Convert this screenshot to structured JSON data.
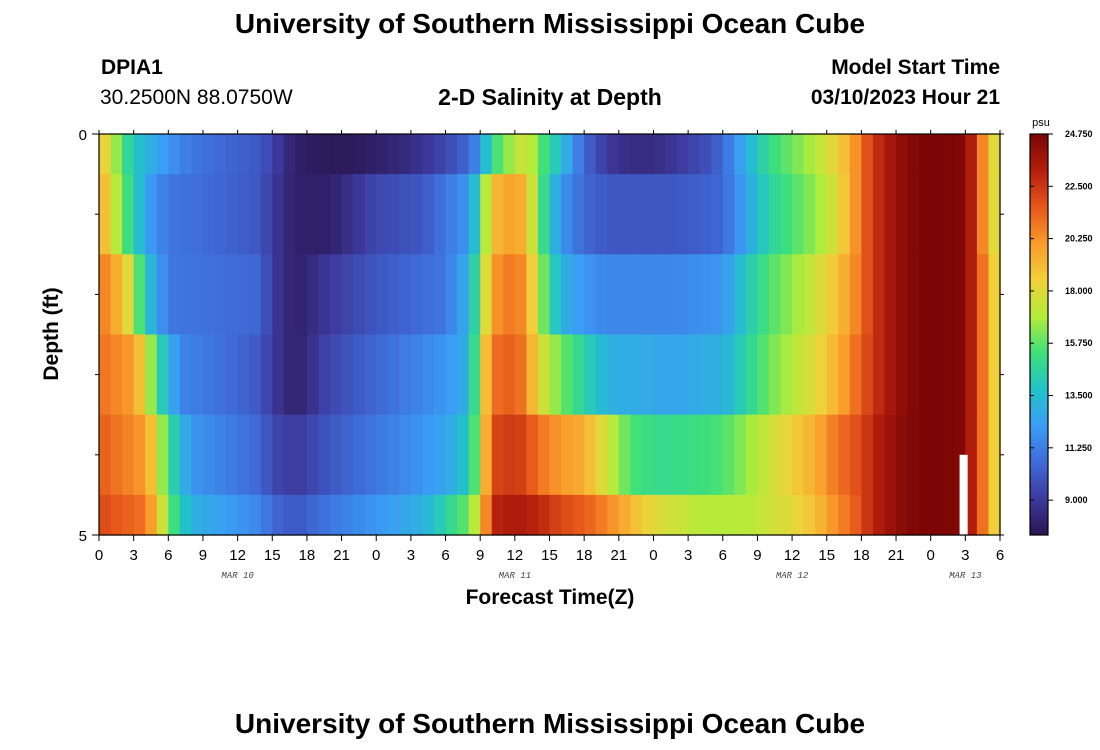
{
  "page": {
    "title": "University of Southern Mississippi Ocean Cube",
    "footer_title": "University of Southern Mississippi Ocean Cube",
    "station_id": "DPIA1",
    "coordinates": "30.2500N  88.0750W",
    "subtitle": "2-D Salinity at Depth",
    "model_start_label": "Model Start Time",
    "model_start_value": "03/10/2023 Hour 21"
  },
  "chart_data": {
    "type": "heatmap",
    "title": "2-D Salinity at Depth",
    "xlabel": "Forecast Time(Z)",
    "ylabel": "Depth (ft)",
    "units": "psu",
    "y_ticks": [
      "0",
      "5"
    ],
    "ylim": [
      0,
      5
    ],
    "x_hours_range": [
      0,
      78
    ],
    "x_ticks": [
      "0",
      "3",
      "6",
      "9",
      "12",
      "15",
      "18",
      "21",
      "0",
      "3",
      "6",
      "9",
      "12",
      "15",
      "18",
      "21",
      "0",
      "3",
      "6",
      "9",
      "12",
      "15",
      "18",
      "21",
      "0",
      "3",
      "6"
    ],
    "date_labels": [
      {
        "label": "MAR 10",
        "hour": 12
      },
      {
        "label": "MAR 11",
        "hour": 36
      },
      {
        "label": "MAR 12",
        "hour": 60
      },
      {
        "label": "MAR 13",
        "hour": 75
      }
    ],
    "colorbar": {
      "min": 7.5,
      "max": 24.75,
      "ticks": [
        "24.750",
        "22.500",
        "20.250",
        "18.000",
        "15.750",
        "13.500",
        "11.250",
        "9.000"
      ],
      "tick_values": [
        24.75,
        22.5,
        20.25,
        18.0,
        15.75,
        13.5,
        11.25,
        9.0
      ],
      "colors": [
        "#2a1450",
        "#3d3a9e",
        "#3f6bd9",
        "#3b9df5",
        "#22c3c9",
        "#3fe07a",
        "#b3ec3a",
        "#f2d03a",
        "#f99b2b",
        "#e7561b",
        "#b41e0c",
        "#7a0505"
      ]
    },
    "layers": [
      {
        "depth_range": [
          0,
          0.5
        ],
        "key_hours": [
          0,
          1,
          2,
          3,
          5,
          8,
          14,
          17,
          19,
          21,
          24,
          27,
          30,
          32,
          33,
          34,
          36,
          37,
          38,
          40,
          42,
          44,
          46,
          48,
          50,
          52,
          54,
          56,
          58,
          60,
          62,
          64,
          65,
          66,
          67,
          69,
          71,
          73,
          75,
          76,
          77,
          78
        ],
        "key_values": [
          19,
          17.5,
          15.5,
          14,
          12.5,
          11,
          10,
          8,
          7.8,
          7.7,
          8,
          8.5,
          9.5,
          10.5,
          12,
          15,
          17,
          17.8,
          16,
          13.5,
          10.5,
          9,
          8.5,
          8.5,
          9,
          9.5,
          10.5,
          13,
          15,
          16,
          17,
          18.5,
          19.5,
          21,
          22.5,
          24,
          24.7,
          24.7,
          24.5,
          22,
          19,
          17
        ]
      },
      {
        "depth_range": [
          0.5,
          1.5
        ],
        "key_hours": [
          0,
          1,
          2,
          3,
          4,
          6,
          14,
          15,
          17,
          20,
          24,
          28,
          30,
          32,
          33,
          34,
          36,
          37,
          38,
          40,
          42,
          44,
          50,
          54,
          56,
          58,
          60,
          62,
          64,
          65,
          66,
          67,
          69,
          71,
          73,
          75,
          76,
          77,
          78
        ],
        "key_values": [
          20,
          18,
          16,
          14.5,
          12.5,
          11,
          10,
          9,
          8,
          8,
          9.5,
          10,
          11,
          12,
          15,
          19,
          20,
          19,
          16,
          12,
          10.5,
          10,
          10,
          10.5,
          12.5,
          14.5,
          15.5,
          16.5,
          18,
          19.5,
          21,
          22.5,
          24,
          24.7,
          24.7,
          24.5,
          22,
          19,
          17
        ]
      },
      {
        "depth_range": [
          1.5,
          2.5
        ],
        "key_hours": [
          0,
          2,
          3,
          4,
          6,
          14,
          15,
          17,
          20,
          24,
          30,
          32,
          33,
          34,
          36,
          37,
          38,
          40,
          42,
          44,
          50,
          54,
          56,
          58,
          60,
          62,
          64,
          65,
          66,
          67,
          69,
          71,
          73,
          75,
          76,
          77,
          78
        ],
        "key_values": [
          21,
          19,
          17,
          14,
          11,
          10.5,
          9,
          8,
          9,
          10,
          11,
          13,
          16,
          20,
          21,
          20,
          17,
          13,
          12,
          11.5,
          11.5,
          12,
          14,
          15.5,
          16.5,
          17.5,
          19,
          20,
          21,
          22.5,
          24,
          24.7,
          24.7,
          24.5,
          22,
          20,
          17
        ]
      },
      {
        "depth_range": [
          2.5,
          3.5
        ],
        "key_hours": [
          0,
          3,
          4,
          5,
          7,
          12,
          14,
          15,
          17,
          20,
          24,
          30,
          32,
          33,
          34,
          36,
          37,
          38,
          40,
          42,
          44,
          50,
          54,
          56,
          58,
          60,
          62,
          64,
          65,
          66,
          67,
          69,
          71,
          73,
          75,
          76,
          77,
          78
        ],
        "key_values": [
          21,
          20,
          18,
          15,
          11.5,
          10.5,
          10,
          9,
          8,
          9.5,
          10.5,
          12,
          13,
          17,
          21,
          21.5,
          20.5,
          18,
          16,
          14.5,
          13,
          12.5,
          13,
          14.5,
          16,
          17,
          18,
          19.5,
          20.5,
          21.5,
          22.5,
          24,
          24.7,
          24.7,
          24.5,
          22,
          20,
          17
        ]
      },
      {
        "depth_range": [
          3.5,
          4.5
        ],
        "key_hours": [
          0,
          4,
          5,
          6,
          8,
          14,
          15,
          17,
          20,
          24,
          30,
          32,
          33,
          34,
          36,
          37,
          38,
          40,
          42,
          44,
          46,
          48,
          50,
          54,
          56,
          58,
          60,
          62,
          64,
          65,
          66,
          67,
          69,
          71,
          73,
          75,
          76,
          77,
          78
        ],
        "key_values": [
          21.5,
          20,
          18,
          15,
          12,
          10.5,
          9.5,
          9,
          10,
          11,
          12.5,
          14,
          17,
          22,
          22.5,
          22,
          21,
          20,
          19.5,
          17.5,
          15.5,
          15,
          15,
          15.5,
          16.5,
          17.5,
          18.5,
          19.5,
          21,
          21.5,
          22,
          23,
          24.2,
          24.7,
          24.7,
          24.5,
          22,
          20,
          17
        ]
      },
      {
        "depth_range": [
          4.5,
          5.0
        ],
        "key_hours": [
          0,
          4,
          5,
          6,
          8,
          14,
          15,
          17,
          20,
          24,
          28,
          30,
          32,
          33,
          34,
          36,
          38,
          40,
          42,
          44,
          48,
          52,
          56,
          58,
          60,
          62,
          64,
          65,
          66,
          67,
          69,
          71,
          73,
          75,
          76,
          77,
          78
        ],
        "key_values": [
          22,
          21,
          19,
          16,
          13,
          11.5,
          10.5,
          10,
          11,
          12,
          13,
          14.5,
          16,
          18,
          23,
          23.5,
          23,
          22,
          21.5,
          20.5,
          18,
          17,
          17,
          17.5,
          18,
          19,
          20.5,
          21,
          22,
          23,
          24.2,
          24.7,
          24.7,
          24.5,
          22,
          20,
          17
        ]
      }
    ],
    "missing_data": [
      {
        "hour_range": [
          74.5,
          75.2
        ],
        "depth_range": [
          4.0,
          5.0
        ]
      }
    ]
  }
}
